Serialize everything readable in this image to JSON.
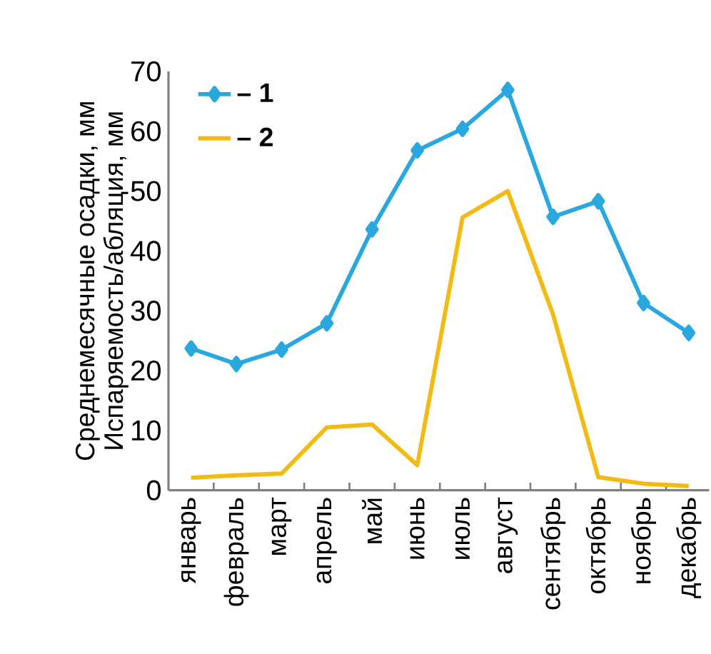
{
  "chart_data": {
    "type": "line",
    "ylabel": "Среднемесячные осадки, мм Испаряемость/абляция, мм",
    "categories": [
      "январь",
      "февраль",
      "март",
      "апрель",
      "май",
      "июнь",
      "июль",
      "август",
      "сентябрь",
      "октябрь",
      "ноябрь",
      "декабрь"
    ],
    "series": [
      {
        "name": "– 1",
        "color": "#29a8e0",
        "marker": "diamond",
        "values": [
          23.7,
          21.1,
          23.5,
          27.9,
          43.6,
          56.8,
          60.4,
          66.9,
          45.7,
          48.3,
          31.3,
          26.3
        ]
      },
      {
        "name": "– 2",
        "color": "#f2bb13",
        "marker": "none",
        "values": [
          2.1,
          2.5,
          2.8,
          10.5,
          11.0,
          4.2,
          45.6,
          50.0,
          29.4,
          2.2,
          1.1,
          0.7
        ]
      }
    ],
    "ylim": [
      0,
      70
    ],
    "yticks": [
      0,
      10,
      20,
      30,
      40,
      50,
      60,
      70
    ],
    "grid": false,
    "legend": "top left",
    "line_style": "solid"
  }
}
